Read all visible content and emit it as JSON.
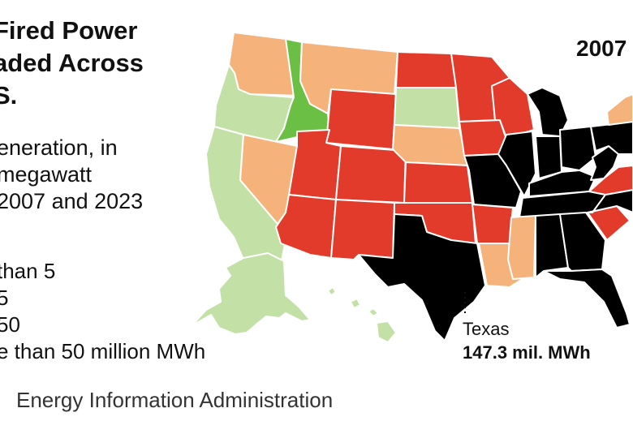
{
  "title": {
    "line1": "Fired Power",
    "line2": "aded Across",
    "line3": "S."
  },
  "subtitle": {
    "line1": "eneration, in",
    "line2": " megawatt",
    "line3": "2007 and 2023"
  },
  "legend": {
    "item1": "than 5",
    "item2": "5",
    "item3": "50",
    "item4": "e than 50 million MWh"
  },
  "source": "Energy Information Administration",
  "year": "2007",
  "callout": {
    "state": "Texas",
    "value": "147.3 mil. MWh"
  },
  "colors": {
    "black": "#000000",
    "red": "#e23a2b",
    "orange": "#f5b27a",
    "light_green": "#c3e0a6",
    "green": "#6bbf45",
    "border": "#ffffff"
  },
  "states": [
    {
      "name": "Washington",
      "category": "orange"
    },
    {
      "name": "Oregon",
      "category": "light_green"
    },
    {
      "name": "California",
      "category": "light_green"
    },
    {
      "name": "Idaho",
      "category": "green"
    },
    {
      "name": "Nevada",
      "category": "orange"
    },
    {
      "name": "Montana",
      "category": "orange"
    },
    {
      "name": "Wyoming",
      "category": "red"
    },
    {
      "name": "Utah",
      "category": "red"
    },
    {
      "name": "Arizona",
      "category": "red"
    },
    {
      "name": "Colorado",
      "category": "red"
    },
    {
      "name": "New Mexico",
      "category": "red"
    },
    {
      "name": "North Dakota",
      "category": "red"
    },
    {
      "name": "South Dakota",
      "category": "light_green"
    },
    {
      "name": "Nebraska",
      "category": "orange"
    },
    {
      "name": "Kansas",
      "category": "red"
    },
    {
      "name": "Oklahoma",
      "category": "red"
    },
    {
      "name": "Texas",
      "category": "black"
    },
    {
      "name": "Minnesota",
      "category": "red"
    },
    {
      "name": "Iowa",
      "category": "red"
    },
    {
      "name": "Missouri",
      "category": "black"
    },
    {
      "name": "Arkansas",
      "category": "red"
    },
    {
      "name": "Louisiana",
      "category": "orange"
    },
    {
      "name": "Wisconsin",
      "category": "red"
    },
    {
      "name": "Illinois",
      "category": "black"
    },
    {
      "name": "Michigan",
      "category": "black"
    },
    {
      "name": "Indiana",
      "category": "black"
    },
    {
      "name": "Ohio",
      "category": "black"
    },
    {
      "name": "Kentucky",
      "category": "black"
    },
    {
      "name": "Tennessee",
      "category": "black"
    },
    {
      "name": "Mississippi",
      "category": "orange"
    },
    {
      "name": "Alabama",
      "category": "black"
    },
    {
      "name": "Georgia",
      "category": "black"
    },
    {
      "name": "Florida",
      "category": "black"
    },
    {
      "name": "South Carolina",
      "category": "red"
    },
    {
      "name": "North Carolina",
      "category": "black"
    },
    {
      "name": "Virginia",
      "category": "red"
    },
    {
      "name": "West Virginia",
      "category": "black"
    },
    {
      "name": "Pennsylvania",
      "category": "black"
    },
    {
      "name": "New York",
      "category": "orange"
    },
    {
      "name": "Alaska",
      "category": "light_green"
    },
    {
      "name": "Hawaii",
      "category": "light_green"
    }
  ]
}
